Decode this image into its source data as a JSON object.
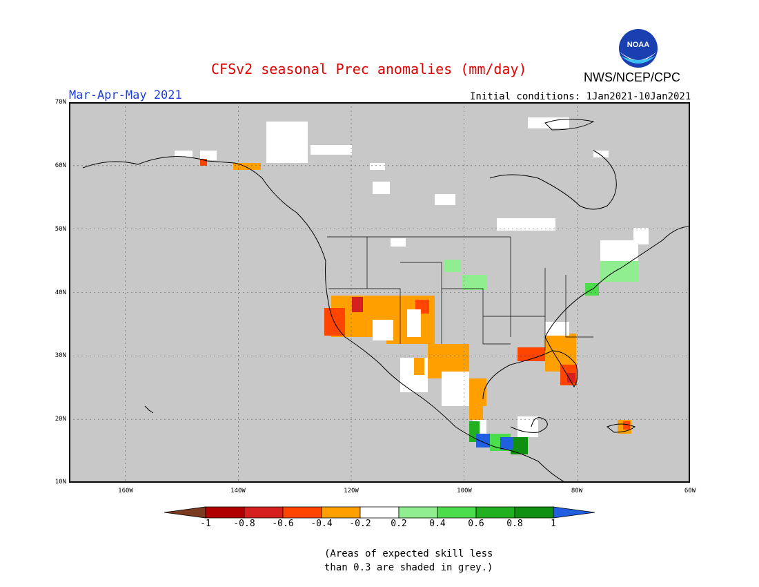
{
  "header": {
    "title": "CFSv2 seasonal Prec anomalies (mm/day)",
    "agency": "NWS/NCEP/CPC",
    "season": "Mar-Apr-May 2021",
    "initial_conditions": "Initial conditions: 1Jan2021-10Jan2021",
    "logo_text": "NOAA"
  },
  "map": {
    "lat_labels": [
      "70N",
      "60N",
      "50N",
      "40N",
      "30N",
      "20N",
      "10N"
    ],
    "lon_labels": [
      "160W",
      "140W",
      "120W",
      "100W",
      "80W",
      "60W"
    ],
    "background_color": "#c8c8c8"
  },
  "colorbar": {
    "labels": [
      "-1",
      "-0.8",
      "-0.6",
      "-0.4",
      "-0.2",
      "0.2",
      "0.4",
      "0.6",
      "0.8",
      "1"
    ],
    "colors": {
      "lt_-1": "#7a3a1f",
      "-1_-0.8": "#b00000",
      "-0.8_-0.6": "#d62020",
      "-0.6_-0.4": "#ff4500",
      "-0.4_-0.2": "#ff9f00",
      "-0.2_0.2": "#ffffff",
      "0.2_0.4": "#90ee90",
      "0.4_0.6": "#4cdd4c",
      "0.6_0.8": "#20b020",
      "0.8_1": "#109010",
      "gt_1": "#2060e0"
    }
  },
  "note": {
    "line1": "(Areas of expected skill less",
    "line2": "than 0.3 are shaded in grey.)"
  }
}
